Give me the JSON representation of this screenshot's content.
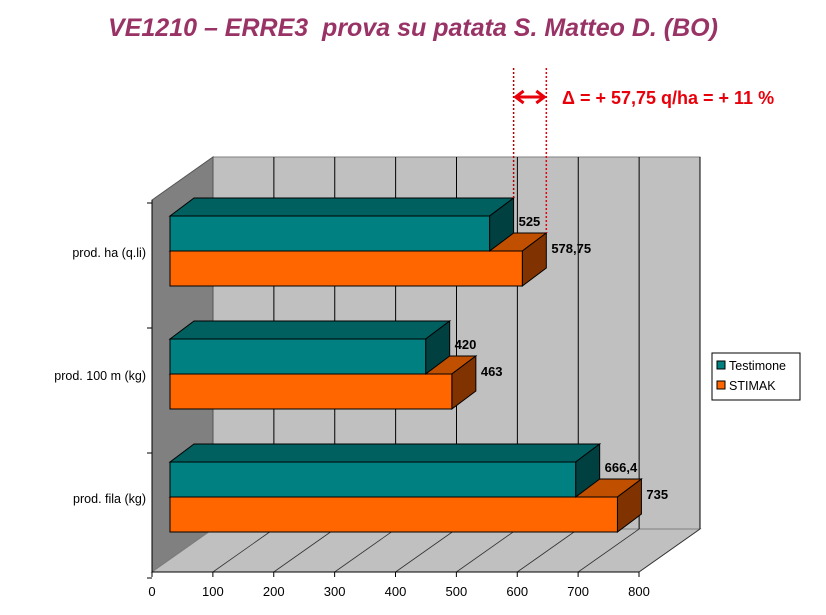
{
  "title": "VE1210 – ERRE3  prova su patata S. Matteo D. (BO)",
  "annotation": "Δ = + 57,75 q/ha = + 11 %",
  "colors": {
    "title": "#993366",
    "annotation": "#E8000B",
    "testimone": "#008080",
    "stimak": "#FF6600",
    "wall": "#C0C0C0",
    "side_wall": "#808080"
  },
  "chart_data": {
    "type": "bar",
    "orientation": "horizontal",
    "style": "3d-clustered",
    "categories": [
      "prod. ha  (q.li)",
      "prod. 100 m (kg)",
      "prod. fila (kg)"
    ],
    "series": [
      {
        "name": "Testimone",
        "values": [
          525,
          420,
          666.4
        ],
        "labels": [
          "525",
          "420",
          "666,4"
        ]
      },
      {
        "name": "STIMAK",
        "values": [
          578.75,
          463,
          735
        ],
        "labels": [
          "578,75",
          "463",
          "735"
        ]
      }
    ],
    "xlim": [
      0,
      800
    ],
    "xticks": [
      "0",
      "100",
      "200",
      "300",
      "400",
      "500",
      "600",
      "700",
      "800"
    ],
    "grid": true,
    "legend": "right"
  }
}
